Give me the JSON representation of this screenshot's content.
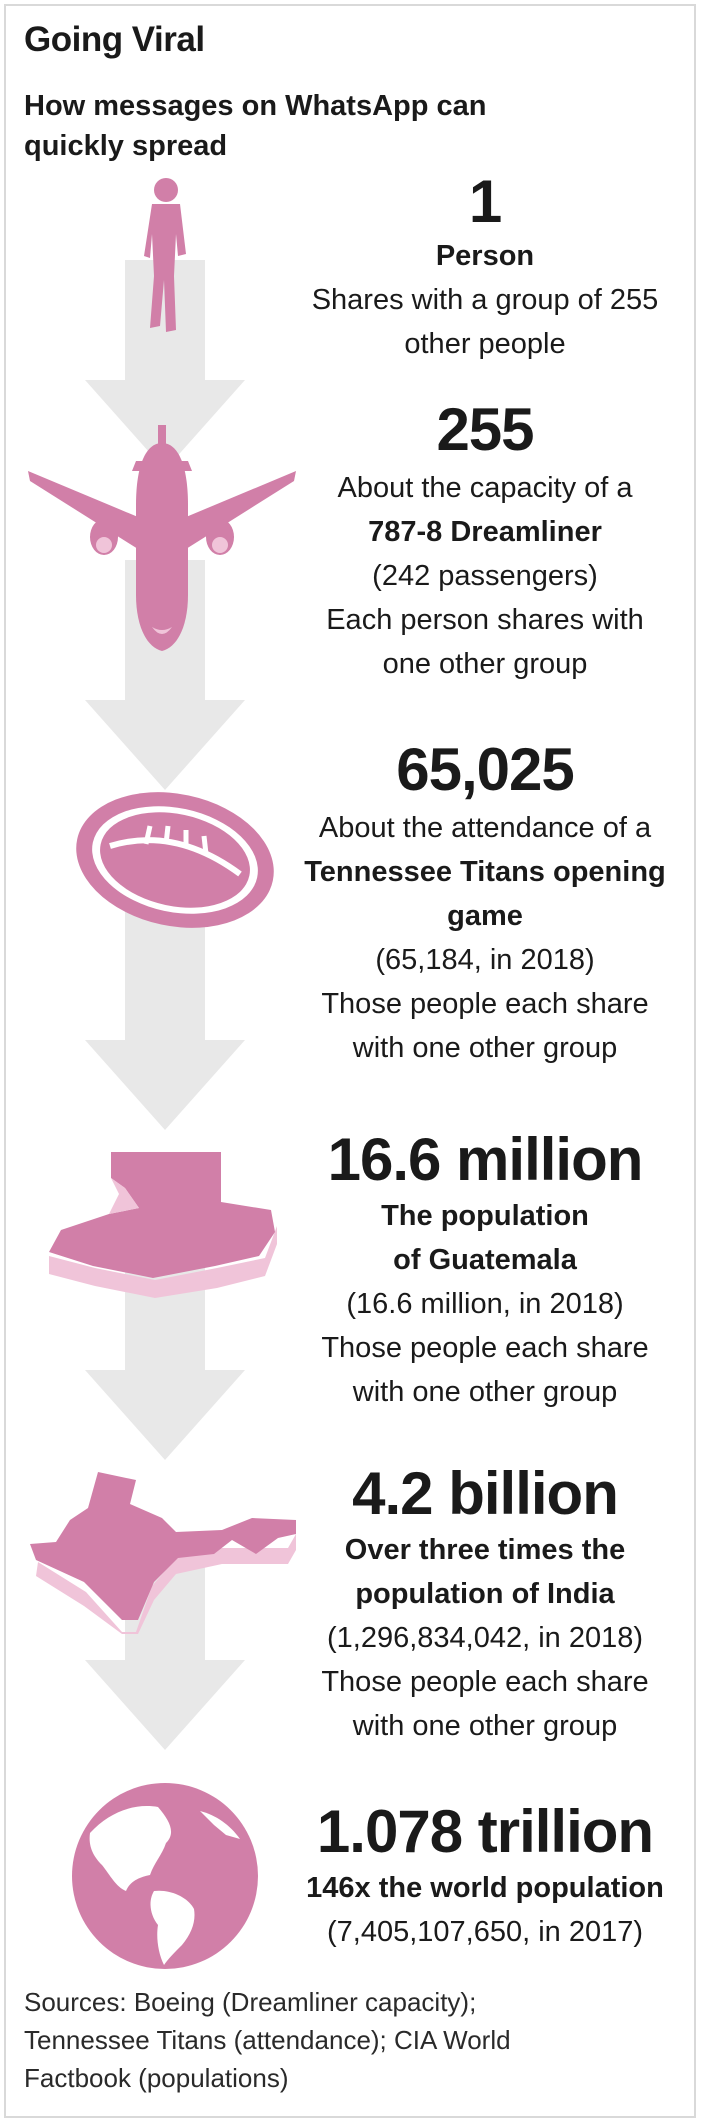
{
  "title": "Going Viral",
  "subtitle": "How messages on WhatsApp can quickly spread",
  "colors": {
    "accent_pink": "#d17fa8",
    "light_pink": "#f0c4d9",
    "arrow_gray": "#e8e8e8",
    "text": "#1a1a1a"
  },
  "steps": [
    {
      "number": "1",
      "icon": "person-icon",
      "lines": [
        "Person",
        "Shares with a group of 255",
        "other people"
      ]
    },
    {
      "number": "255",
      "icon": "airplane-icon",
      "lines": [
        "About the capacity of a",
        "787-8 Dreamliner",
        "(242 passengers)",
        "Each person shares with",
        "one other group"
      ]
    },
    {
      "number": "65,025",
      "icon": "football-icon",
      "lines": [
        "About the attendance of a",
        "Tennessee Titans opening",
        "game",
        "(65,184, in 2018)",
        "Those people each share",
        "with one other group"
      ]
    },
    {
      "number": "16.6 million",
      "icon": "guatemala-map-icon",
      "lines": [
        "The population",
        "of Guatemala",
        "(16.6 million, in 2018)",
        "Those people each share",
        "with one other group"
      ]
    },
    {
      "number": "4.2 billion",
      "icon": "india-map-icon",
      "lines": [
        "Over three times the",
        "population of India",
        "(1,296,834,042, in 2018)",
        "Those people each share",
        "with one other group"
      ]
    },
    {
      "number": "1.078 trillion",
      "icon": "globe-icon",
      "lines": [
        "146x the world population",
        "(7,405,107,650, in 2017)"
      ]
    }
  ],
  "sources": {
    "line1": "Sources: Boeing (Dreamliner capacity);",
    "line2": "Tennessee Titans (attendance); CIA World",
    "line3": "Factbook (populations)"
  }
}
